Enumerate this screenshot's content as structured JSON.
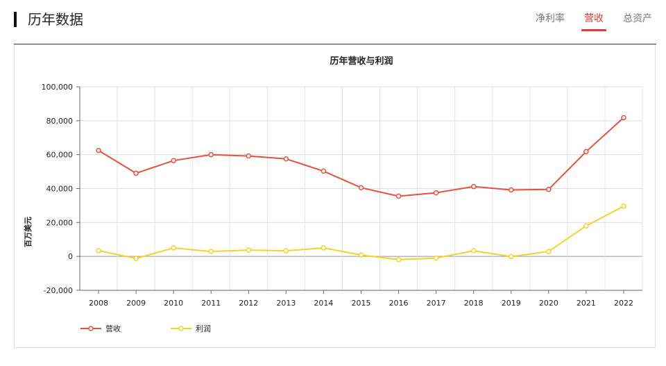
{
  "page": {
    "title": "历年数据"
  },
  "tabs": [
    {
      "label": "净利率",
      "active": false
    },
    {
      "label": "营收",
      "active": true
    },
    {
      "label": "总资产",
      "active": false
    }
  ],
  "colors": {
    "accent": "#e03c31",
    "revenue": "#e8503d",
    "profit": "#f5d226"
  },
  "chart_data": {
    "type": "line",
    "title": "历年营收与利润",
    "xlabel": "",
    "ylabel": "百万美元",
    "categories": [
      "2008",
      "2009",
      "2010",
      "2011",
      "2012",
      "2013",
      "2014",
      "2015",
      "2016",
      "2017",
      "2018",
      "2019",
      "2020",
      "2021",
      "2022"
    ],
    "ylim": [
      -20000,
      100000
    ],
    "yticks": [
      -20000,
      0,
      20000,
      40000,
      60000,
      80000,
      100000
    ],
    "ytick_labels": [
      "-20,000",
      "0",
      "20,000",
      "40,000",
      "60,000",
      "80,000",
      "100,000"
    ],
    "grid": true,
    "legend": "bottom-left",
    "series": [
      {
        "name": "营收",
        "color": "#e8503d",
        "values": [
          62500,
          49000,
          56500,
          60000,
          59200,
          57500,
          50300,
          40500,
          35500,
          37500,
          41200,
          39200,
          39500,
          61800,
          81800
        ]
      },
      {
        "name": "利润",
        "color": "#f5d226",
        "values": [
          3400,
          -1200,
          5000,
          2900,
          3700,
          3300,
          5000,
          800,
          -1900,
          -1000,
          3300,
          -100,
          2900,
          18000,
          29600
        ]
      }
    ]
  }
}
